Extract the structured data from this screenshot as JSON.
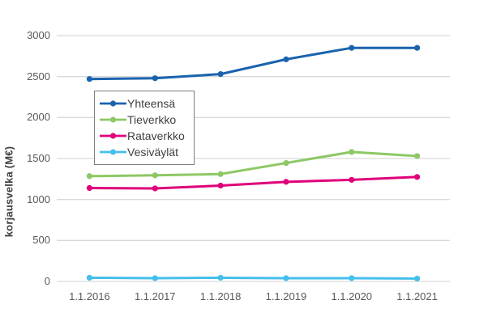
{
  "chart_data": {
    "type": "line",
    "title": "",
    "xlabel": "",
    "ylabel": "korjausvelka (M€)",
    "categories": [
      "1.1.2016",
      "1.1.2017",
      "1.1.2018",
      "1.1.2019",
      "1.1.2020",
      "1.1.2021"
    ],
    "series": [
      {
        "name": "Yhteensä",
        "color": "#1a63ad",
        "values": [
          2470,
          2480,
          2530,
          2710,
          2850,
          2850
        ]
      },
      {
        "name": "Tieverkko",
        "color": "#8dc865",
        "values": [
          1285,
          1295,
          1310,
          1445,
          1580,
          1530
        ]
      },
      {
        "name": "Rataverkko",
        "color": "#e0007a",
        "values": [
          1140,
          1135,
          1170,
          1215,
          1240,
          1275
        ]
      },
      {
        "name": "Vesiväylät",
        "color": "#45bfeb",
        "values": [
          45,
          40,
          45,
          40,
          40,
          35
        ]
      }
    ],
    "ylim": [
      0,
      3000
    ],
    "yticks": [
      0,
      500,
      1000,
      1500,
      2000,
      2500,
      3000
    ],
    "grid": "horizontal",
    "legend_position": "inside-upper-left",
    "marker": "circle"
  },
  "colors": {
    "background": "#ffffff",
    "gridline": "#d9d9d9",
    "axis_tick_text": "#595959",
    "axis_title_text": "#404040",
    "legend_border": "#7f7f7f",
    "legend_text": "#404040"
  }
}
